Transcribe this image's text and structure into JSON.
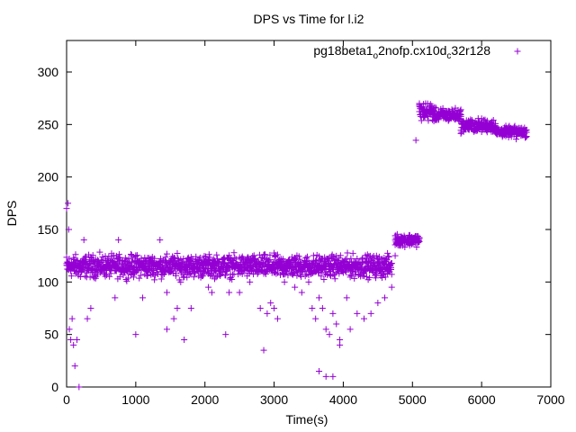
{
  "chart_data": {
    "type": "scatter",
    "title": "DPS vs Time for l.i2",
    "xlabel": "Time(s)",
    "ylabel": "DPS",
    "xlim": [
      0,
      7000
    ],
    "ylim": [
      0,
      330
    ],
    "xticks": [
      0,
      1000,
      2000,
      3000,
      4000,
      5000,
      6000,
      7000
    ],
    "yticks": [
      0,
      50,
      100,
      150,
      200,
      250,
      300
    ],
    "grid": false,
    "legend_position": "top-right",
    "marker": "plus",
    "color": "#9400d3",
    "series": [
      {
        "name_parts": [
          "pg18beta1",
          "o",
          "2nofp.cx10d",
          "c",
          "32r128"
        ],
        "name": "pg18beta1_o2nofp.cx10d_c32r128",
        "points": [
          [
            0,
            170
          ],
          [
            20,
            175
          ],
          [
            30,
            150
          ],
          [
            40,
            55
          ],
          [
            60,
            45
          ],
          [
            80,
            65
          ],
          [
            100,
            40
          ],
          [
            120,
            20
          ],
          [
            150,
            45
          ],
          [
            180,
            0
          ],
          [
            200,
            105
          ],
          [
            220,
            110
          ],
          [
            250,
            140
          ],
          [
            300,
            65
          ],
          [
            350,
            75
          ],
          [
            700,
            85
          ],
          [
            750,
            140
          ],
          [
            1000,
            50
          ],
          [
            1100,
            85
          ],
          [
            1350,
            140
          ],
          [
            1450,
            90
          ],
          [
            1450,
            55
          ],
          [
            1550,
            65
          ],
          [
            1600,
            75
          ],
          [
            1650,
            100
          ],
          [
            1700,
            45
          ],
          [
            1800,
            75
          ],
          [
            1900,
            110
          ],
          [
            2050,
            95
          ],
          [
            2100,
            90
          ],
          [
            2200,
            110
          ],
          [
            2300,
            50
          ],
          [
            2350,
            90
          ],
          [
            2500,
            90
          ],
          [
            2650,
            100
          ],
          [
            2800,
            75
          ],
          [
            2850,
            35
          ],
          [
            2900,
            70
          ],
          [
            2950,
            80
          ],
          [
            3000,
            75
          ],
          [
            3050,
            65
          ],
          [
            3150,
            100
          ],
          [
            3300,
            95
          ],
          [
            3400,
            90
          ],
          [
            3500,
            100
          ],
          [
            3550,
            75
          ],
          [
            3600,
            65
          ],
          [
            3650,
            85
          ],
          [
            3700,
            75
          ],
          [
            3750,
            55
          ],
          [
            3800,
            50
          ],
          [
            3850,
            70
          ],
          [
            3900,
            60
          ],
          [
            3950,
            45
          ],
          [
            3650,
            15
          ],
          [
            3750,
            10
          ],
          [
            3850,
            10
          ],
          [
            3950,
            40
          ],
          [
            4050,
            85
          ],
          [
            4100,
            55
          ],
          [
            4200,
            70
          ],
          [
            4300,
            65
          ],
          [
            4400,
            70
          ],
          [
            4500,
            80
          ],
          [
            4600,
            85
          ],
          [
            4700,
            95
          ]
        ],
        "bands": [
          {
            "x_start": 0,
            "x_end": 4700,
            "y_min": 100,
            "y_max": 130,
            "center": 115
          },
          {
            "x_start": 4750,
            "x_end": 5100,
            "y_min": 132,
            "y_max": 148,
            "center": 140
          },
          {
            "x_start": 5100,
            "x_end": 5300,
            "y_min": 250,
            "y_max": 275,
            "center": 265
          },
          {
            "x_start": 5300,
            "x_end": 5700,
            "y_min": 250,
            "y_max": 268,
            "center": 258
          },
          {
            "x_start": 5700,
            "x_end": 6200,
            "y_min": 240,
            "y_max": 258,
            "center": 250
          },
          {
            "x_start": 6200,
            "x_end": 6650,
            "y_min": 236,
            "y_max": 250,
            "center": 243
          }
        ],
        "extra_points": [
          [
            4750,
            125
          ],
          [
            5050,
            235
          ],
          [
            5100,
            270
          ],
          [
            5150,
            262
          ],
          [
            6500,
            236
          ],
          [
            6600,
            240
          ]
        ]
      }
    ]
  }
}
